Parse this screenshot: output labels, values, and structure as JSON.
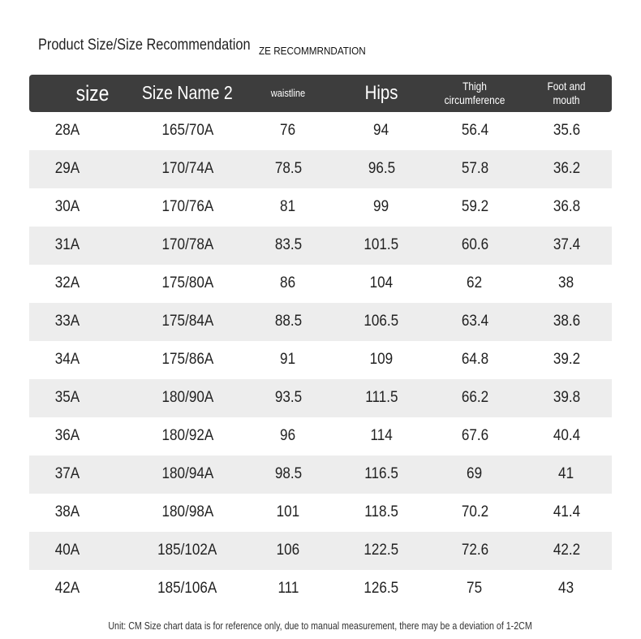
{
  "title": "Product Size/Size Recommendation",
  "subtitle": "ZE RECOMMRNDATION",
  "headers": [
    "size",
    "Size Name 2",
    "waistline",
    "Hips",
    "Thigh circumference",
    "Foot and mouth"
  ],
  "rows": [
    [
      "28A",
      "165/70A",
      "76",
      "94",
      "56.4",
      "35.6"
    ],
    [
      "29A",
      "170/74A",
      "78.5",
      "96.5",
      "57.8",
      "36.2"
    ],
    [
      "30A",
      "170/76A",
      "81",
      "99",
      "59.2",
      "36.8"
    ],
    [
      "31A",
      "170/78A",
      "83.5",
      "101.5",
      "60.6",
      "37.4"
    ],
    [
      "32A",
      "175/80A",
      "86",
      "104",
      "62",
      "38"
    ],
    [
      "33A",
      "175/84A",
      "88.5",
      "106.5",
      "63.4",
      "38.6"
    ],
    [
      "34A",
      "175/86A",
      "91",
      "109",
      "64.8",
      "39.2"
    ],
    [
      "35A",
      "180/90A",
      "93.5",
      "111.5",
      "66.2",
      "39.8"
    ],
    [
      "36A",
      "180/92A",
      "96",
      "114",
      "67.6",
      "40.4"
    ],
    [
      "37A",
      "180/94A",
      "98.5",
      "116.5",
      "69",
      "41"
    ],
    [
      "38A",
      "180/98A",
      "101",
      "118.5",
      "70.2",
      "41.4"
    ],
    [
      "40A",
      "185/102A",
      "106",
      "122.5",
      "72.6",
      "42.2"
    ],
    [
      "42A",
      "185/106A",
      "111",
      "126.5",
      "75",
      "43"
    ]
  ],
  "footnote": "Unit: CM Size chart data is for reference only, due to manual measurement, there may be a deviation of 1-2CM",
  "colors": {
    "header_bg": "#3d3d3d",
    "alt_row": "#ededed"
  }
}
